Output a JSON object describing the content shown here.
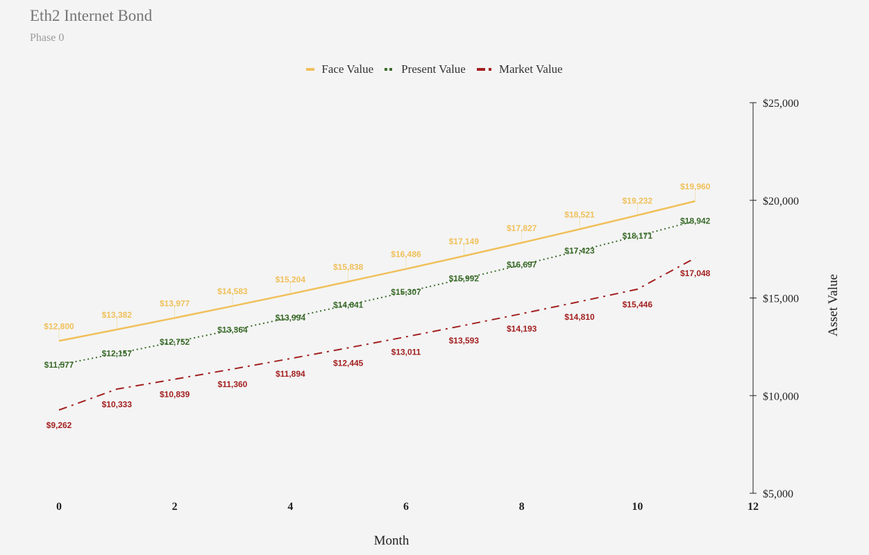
{
  "chart_data": {
    "type": "line",
    "title": "Eth2 Internet Bond",
    "subtitle": "Phase 0",
    "xlabel": "Month",
    "ylabel": "Asset Value",
    "x": [
      0,
      1,
      2,
      3,
      4,
      5,
      6,
      7,
      8,
      9,
      10,
      11
    ],
    "xlim": [
      0,
      12
    ],
    "ylim": [
      5000,
      25000
    ],
    "x_ticks": [
      0,
      2,
      4,
      6,
      8,
      10,
      12
    ],
    "y_ticks": [
      5000,
      10000,
      15000,
      20000,
      25000
    ],
    "y_tick_labels": [
      "$5,000",
      "$10,000",
      "$15,000",
      "$20,000",
      "$25,000"
    ],
    "y_axis_position": "right",
    "legend_position": "top",
    "grid": false,
    "series": [
      {
        "name": "Face Value",
        "color": "#f0c05a",
        "style": "solid",
        "values": [
          12800,
          13382,
          13977,
          14583,
          15204,
          15838,
          16486,
          17149,
          17827,
          18521,
          19232,
          19960
        ],
        "labels": [
          "$12,800",
          "$13,382",
          "$13,977",
          "$14,583",
          "$15,204",
          "$15,838",
          "$16,486",
          "$17,149",
          "$17,827",
          "$18,521",
          "$19,232",
          "$19,960"
        ]
      },
      {
        "name": "Present Value",
        "color": "#3a6b2a",
        "style": "dotted",
        "values": [
          11577,
          12157,
          12752,
          13364,
          13994,
          14641,
          15307,
          15992,
          16697,
          17423,
          18171,
          18942
        ],
        "labels": [
          "$11,577",
          "$12,157",
          "$12,752",
          "$13,364",
          "$13,994",
          "$14,641",
          "$15,307",
          "$15,992",
          "$16,697",
          "$17,423",
          "$18,171",
          "$18,942"
        ]
      },
      {
        "name": "Market Value",
        "color": "#a32020",
        "style": "dashdot",
        "values": [
          9262,
          10333,
          10839,
          11360,
          11894,
          12445,
          13011,
          13593,
          14193,
          14810,
          15446,
          17048
        ],
        "labels": [
          "$9,262",
          "$10,333",
          "$10,839",
          "$11,360",
          "$11,894",
          "$12,445",
          "$13,011",
          "$13,593",
          "$14,193",
          "$14,810",
          "$15,446",
          "$17,048"
        ]
      }
    ]
  }
}
